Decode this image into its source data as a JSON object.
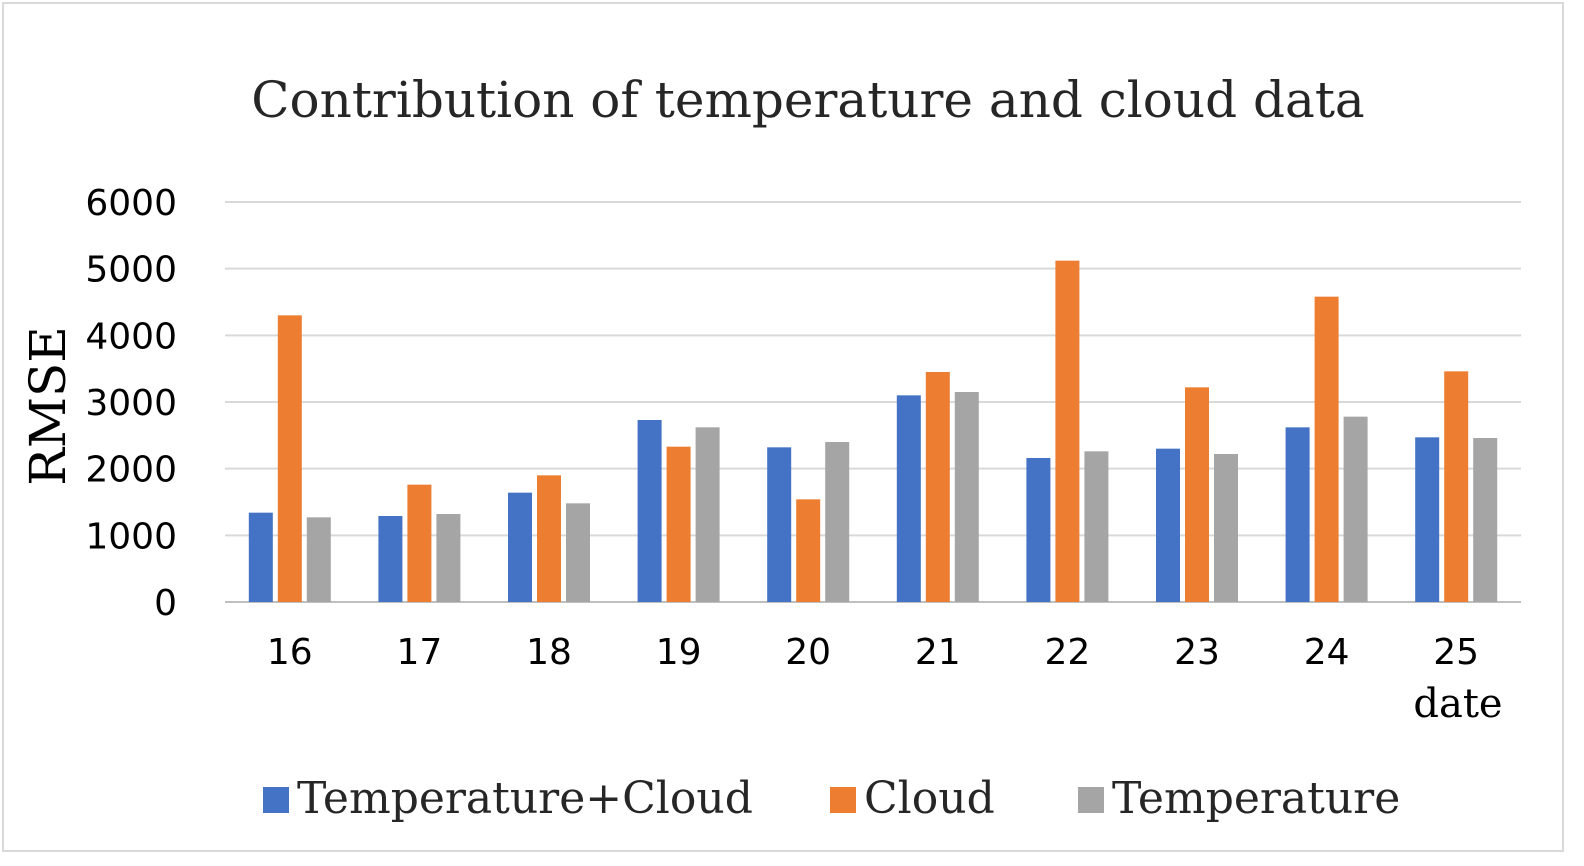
{
  "chart_data": {
    "type": "bar",
    "title": "Contribution of temperature and cloud data",
    "xlabel": "date",
    "ylabel": "RMSE",
    "ylim": [
      0,
      6000
    ],
    "yticks": [
      "0",
      "1000",
      "2000",
      "3000",
      "4000",
      "5000",
      "6000"
    ],
    "grid": true,
    "legend": "bottom",
    "categories": [
      "16",
      "17",
      "18",
      "19",
      "20",
      "21",
      "22",
      "23",
      "24",
      "25"
    ],
    "series": [
      {
        "name": "Temperature+Cloud",
        "color": "#4472c4",
        "values": [
          1340,
          1290,
          1640,
          2730,
          2320,
          3100,
          2160,
          2300,
          2620,
          2470
        ]
      },
      {
        "name": "Cloud",
        "color": "#ed7d31",
        "values": [
          4300,
          1760,
          1900,
          2330,
          1540,
          3450,
          5120,
          3220,
          4580,
          3460
        ]
      },
      {
        "name": "Temperature",
        "color": "#a5a5a5",
        "values": [
          1270,
          1320,
          1480,
          2620,
          2400,
          3150,
          2260,
          2220,
          2780,
          2460
        ]
      }
    ]
  }
}
